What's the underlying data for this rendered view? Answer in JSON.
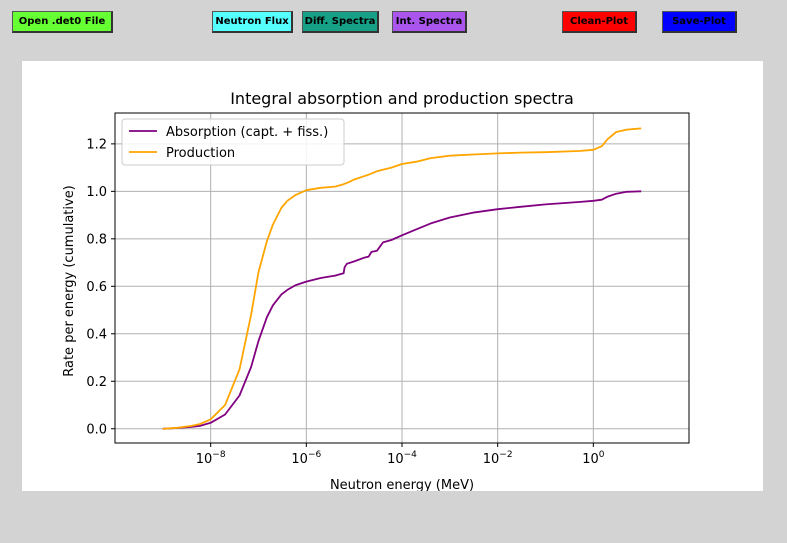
{
  "toolbar": {
    "buttons": [
      {
        "label": "Open .det0 File",
        "color": "#66ff33"
      },
      {
        "label": "Neutron Flux",
        "color": "#55ffff"
      },
      {
        "label": "Diff. Spectra",
        "color": "#16a085"
      },
      {
        "label": "Int. Spectra",
        "color": "#aa55ee"
      },
      {
        "label": "Clean-Plot",
        "color": "#ff0000"
      },
      {
        "label": "Save-Plot",
        "color": "#0000ff"
      }
    ]
  },
  "chart_data": {
    "type": "line",
    "title": "Integral absorption and production spectra",
    "xlabel": "Neutron energy (MeV)",
    "ylabel": "Rate per energy (cumulative)",
    "x_scale": "log",
    "xlim": [
      1e-10,
      100
    ],
    "ylim": [
      -0.06,
      1.33
    ],
    "grid": true,
    "legend_position": "top-left",
    "x_ticks": [
      {
        "value": 1e-08,
        "base": "10",
        "exp": "−8"
      },
      {
        "value": 1e-06,
        "base": "10",
        "exp": "−6"
      },
      {
        "value": 0.0001,
        "base": "10",
        "exp": "−4"
      },
      {
        "value": 0.01,
        "base": "10",
        "exp": "−2"
      },
      {
        "value": 1,
        "base": "10",
        "exp": "0"
      }
    ],
    "y_ticks": [
      {
        "value": 0.0,
        "label": "0.0"
      },
      {
        "value": 0.2,
        "label": "0.2"
      },
      {
        "value": 0.4,
        "label": "0.4"
      },
      {
        "value": 0.6,
        "label": "0.6"
      },
      {
        "value": 0.8,
        "label": "0.8"
      },
      {
        "value": 1.0,
        "label": "1.0"
      },
      {
        "value": 1.2,
        "label": "1.2"
      }
    ],
    "series": [
      {
        "name": "Absorption (capt. + fiss.)",
        "color": "#800080",
        "x": [
          1e-09,
          2e-09,
          4e-09,
          6e-09,
          1e-08,
          2e-08,
          4e-08,
          7e-08,
          1e-07,
          1.5e-07,
          2e-07,
          3e-07,
          4e-07,
          6e-07,
          1e-06,
          2e-06,
          4e-06,
          6e-06,
          6.3e-06,
          7e-06,
          1e-05,
          1.6e-05,
          2e-05,
          2.3e-05,
          3e-05,
          4e-05,
          6e-05,
          0.0001,
          0.0002,
          0.0004,
          0.001,
          0.003,
          0.01,
          0.03,
          0.1,
          0.5,
          1,
          1.5,
          2,
          3,
          5,
          10
        ],
        "y": [
          0.0,
          0.003,
          0.008,
          0.012,
          0.025,
          0.06,
          0.14,
          0.26,
          0.37,
          0.47,
          0.52,
          0.565,
          0.585,
          0.605,
          0.62,
          0.635,
          0.645,
          0.655,
          0.68,
          0.695,
          0.705,
          0.72,
          0.725,
          0.745,
          0.75,
          0.785,
          0.795,
          0.815,
          0.84,
          0.865,
          0.89,
          0.91,
          0.925,
          0.935,
          0.945,
          0.955,
          0.96,
          0.965,
          0.978,
          0.99,
          0.998,
          1.0
        ]
      },
      {
        "name": "Production",
        "color": "#ffa500",
        "x": [
          1e-09,
          2e-09,
          4e-09,
          6e-09,
          1e-08,
          2e-08,
          4e-08,
          7e-08,
          1e-07,
          1.5e-07,
          2e-07,
          3e-07,
          4e-07,
          6e-07,
          1e-06,
          2e-06,
          4e-06,
          6e-06,
          8e-06,
          1e-05,
          2e-05,
          3e-05,
          6e-05,
          0.0001,
          0.0002,
          0.0004,
          0.001,
          0.003,
          0.01,
          0.03,
          0.1,
          0.5,
          1,
          1.5,
          2,
          3,
          5,
          10
        ],
        "y": [
          0.0,
          0.004,
          0.012,
          0.02,
          0.04,
          0.1,
          0.25,
          0.48,
          0.66,
          0.79,
          0.86,
          0.93,
          0.96,
          0.985,
          1.005,
          1.015,
          1.02,
          1.03,
          1.04,
          1.05,
          1.07,
          1.085,
          1.1,
          1.115,
          1.125,
          1.14,
          1.15,
          1.155,
          1.16,
          1.163,
          1.165,
          1.17,
          1.175,
          1.19,
          1.22,
          1.25,
          1.26,
          1.265
        ]
      }
    ]
  }
}
